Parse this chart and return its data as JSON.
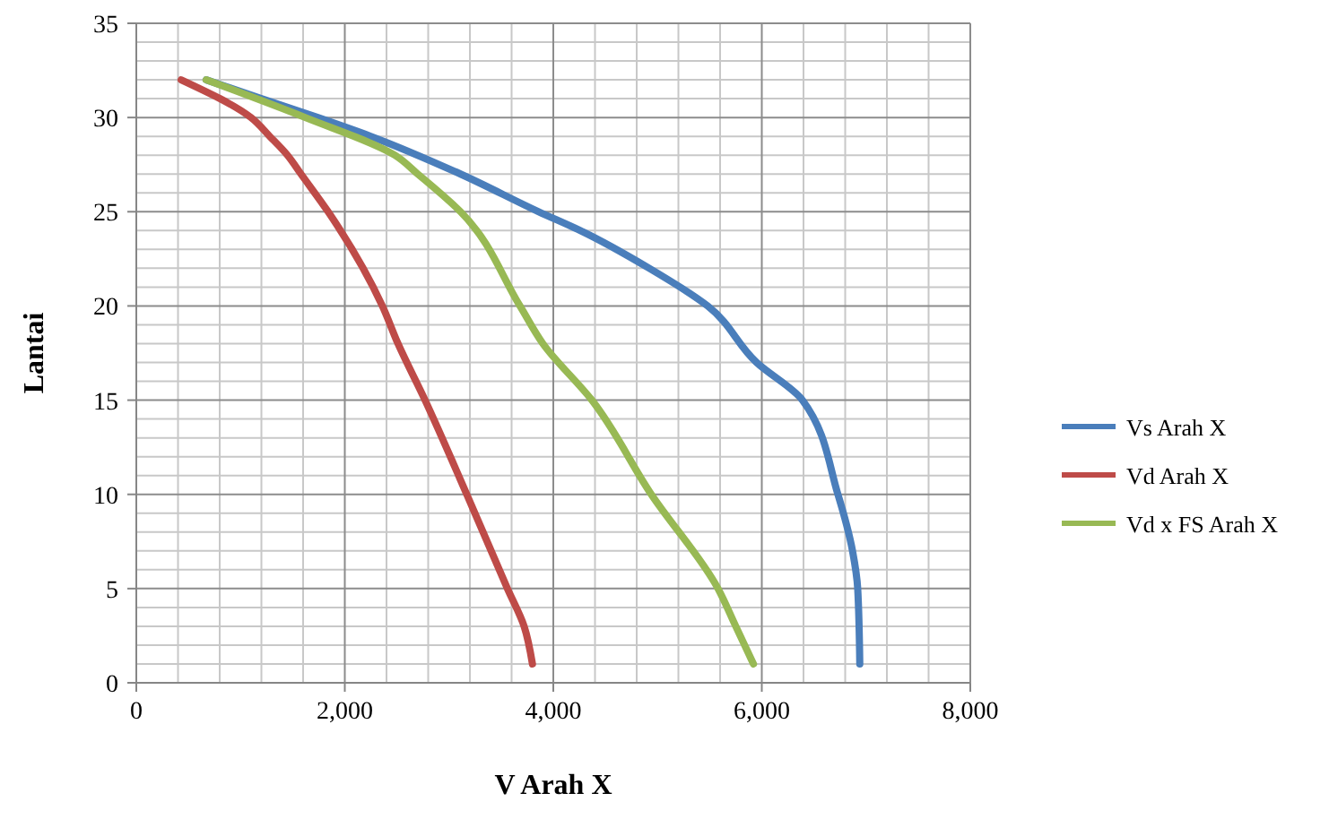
{
  "chart_data": {
    "type": "line",
    "xlabel": "V Arah X",
    "ylabel": "Lantai",
    "xlim": [
      0,
      8000
    ],
    "xticks": [
      {
        "value": 0,
        "label": "0"
      },
      {
        "value": 2000,
        "label": "2,000"
      },
      {
        "value": 4000,
        "label": "4,000"
      },
      {
        "value": 6000,
        "label": "6,000"
      },
      {
        "value": 8000,
        "label": "8,000"
      }
    ],
    "ylim": [
      0,
      35
    ],
    "yticks": [
      0,
      5,
      10,
      15,
      20,
      25,
      30,
      35
    ],
    "grid": true,
    "legend": "right",
    "marker": "none",
    "line_style": "solid",
    "series": [
      {
        "name": "Vs Arah X",
        "color": "#4a7ebb",
        "x": [
          6940,
          6920,
          6870,
          6730,
          6390,
          5950,
          5480,
          4920,
          4260,
          3860,
          3110,
          2250,
          1740,
          1200,
          670
        ],
        "values": [
          1,
          5,
          7,
          10,
          15,
          17,
          20,
          22,
          24,
          25,
          27,
          29,
          30,
          31,
          32
        ]
      },
      {
        "name": "Vd Arah X",
        "color": "#be4b48",
        "x": [
          3800,
          3720,
          3560,
          3170,
          2770,
          2510,
          2360,
          1840,
          1580,
          1450,
          1280,
          1100,
          430
        ],
        "values": [
          1,
          3,
          5,
          10,
          15,
          18,
          20,
          25,
          27,
          28,
          29,
          30,
          32
        ]
      },
      {
        "name": "Vd x FS Arah X",
        "color": "#98b954",
        "x": [
          5920,
          5750,
          5580,
          4940,
          4370,
          3900,
          3680,
          3110,
          2700,
          2480,
          1620,
          670
        ],
        "values": [
          1,
          3,
          5,
          10,
          15,
          18,
          20,
          25,
          27,
          28,
          30,
          32
        ]
      }
    ]
  }
}
